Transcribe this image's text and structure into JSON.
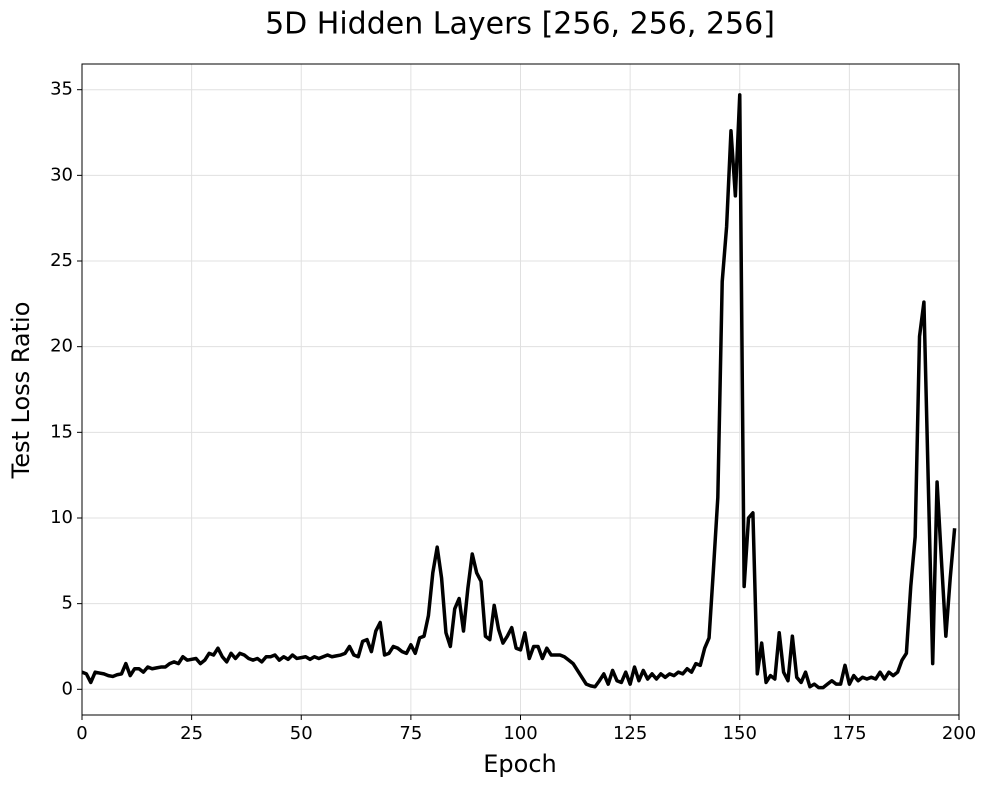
{
  "chart_data": {
    "type": "line",
    "title": "5D Hidden Layers [256, 256, 256]",
    "x_label": "Epoch",
    "y_label": "Test Loss Ratio",
    "color": "#000000",
    "grid": true,
    "xlim": [
      0,
      200
    ],
    "xticks": [
      0,
      25,
      50,
      75,
      100,
      125,
      150,
      175,
      200
    ],
    "ylim": [
      -1.5,
      36.5
    ],
    "yticks": [
      0,
      5,
      10,
      15,
      20,
      25,
      30,
      35
    ],
    "x": [
      0,
      1,
      2,
      3,
      4,
      5,
      6,
      7,
      8,
      9,
      10,
      11,
      12,
      13,
      14,
      15,
      16,
      17,
      18,
      19,
      20,
      21,
      22,
      23,
      24,
      25,
      26,
      27,
      28,
      29,
      30,
      31,
      32,
      33,
      34,
      35,
      36,
      37,
      38,
      39,
      40,
      41,
      42,
      43,
      44,
      45,
      46,
      47,
      48,
      49,
      50,
      51,
      52,
      53,
      54,
      55,
      56,
      57,
      58,
      59,
      60,
      61,
      62,
      63,
      64,
      65,
      66,
      67,
      68,
      69,
      70,
      71,
      72,
      73,
      74,
      75,
      76,
      77,
      78,
      79,
      80,
      81,
      82,
      83,
      84,
      85,
      86,
      87,
      88,
      89,
      90,
      91,
      92,
      93,
      94,
      95,
      96,
      97,
      98,
      99,
      100,
      101,
      102,
      103,
      104,
      105,
      106,
      107,
      108,
      109,
      110,
      111,
      112,
      113,
      114,
      115,
      116,
      117,
      118,
      119,
      120,
      121,
      122,
      123,
      124,
      125,
      126,
      127,
      128,
      129,
      130,
      131,
      132,
      133,
      134,
      135,
      136,
      137,
      138,
      139,
      140,
      141,
      142,
      143,
      144,
      145,
      146,
      147,
      148,
      149,
      150,
      151,
      152,
      153,
      154,
      155,
      156,
      157,
      158,
      159,
      160,
      161,
      162,
      163,
      164,
      165,
      166,
      167,
      168,
      169,
      170,
      171,
      172,
      173,
      174,
      175,
      176,
      177,
      178,
      179,
      180,
      181,
      182,
      183,
      184,
      185,
      186,
      187,
      188,
      189,
      190,
      191,
      192,
      193,
      194,
      195,
      196,
      197,
      198,
      199
    ],
    "values": [
      1.0,
      0.9,
      0.4,
      1.0,
      0.95,
      0.9,
      0.8,
      0.75,
      0.85,
      0.9,
      1.5,
      0.8,
      1.2,
      1.2,
      1.0,
      1.3,
      1.2,
      1.25,
      1.3,
      1.3,
      1.5,
      1.6,
      1.5,
      1.9,
      1.7,
      1.75,
      1.8,
      1.5,
      1.7,
      2.1,
      2.0,
      2.4,
      1.9,
      1.6,
      2.1,
      1.8,
      2.1,
      2.0,
      1.8,
      1.7,
      1.8,
      1.6,
      1.9,
      1.9,
      2.0,
      1.7,
      1.9,
      1.75,
      2.0,
      1.8,
      1.85,
      1.9,
      1.75,
      1.9,
      1.8,
      1.9,
      2.0,
      1.9,
      1.95,
      2.0,
      2.1,
      2.5,
      2.0,
      1.9,
      2.8,
      2.9,
      2.2,
      3.4,
      3.9,
      2.0,
      2.1,
      2.5,
      2.4,
      2.2,
      2.1,
      2.6,
      2.1,
      3.0,
      3.1,
      4.3,
      6.8,
      8.3,
      6.5,
      3.3,
      2.5,
      4.7,
      5.3,
      3.4,
      5.9,
      7.9,
      6.8,
      6.3,
      3.1,
      2.9,
      4.9,
      3.5,
      2.7,
      3.1,
      3.6,
      2.4,
      2.3,
      3.3,
      1.8,
      2.5,
      2.5,
      1.8,
      2.4,
      2.0,
      2.0,
      2.0,
      1.9,
      1.7,
      1.5,
      1.1,
      0.7,
      0.3,
      0.2,
      0.15,
      0.5,
      0.9,
      0.3,
      1.1,
      0.5,
      0.4,
      1.0,
      0.3,
      1.3,
      0.5,
      1.1,
      0.6,
      0.9,
      0.6,
      0.9,
      0.7,
      0.9,
      0.8,
      1.0,
      0.9,
      1.2,
      1.0,
      1.5,
      1.4,
      2.4,
      3.0,
      7.0,
      11.2,
      23.8,
      27.0,
      32.6,
      28.8,
      34.7,
      6.0,
      10.0,
      10.3,
      0.9,
      2.7,
      0.4,
      0.8,
      0.6,
      3.3,
      1.0,
      0.5,
      3.1,
      0.7,
      0.4,
      1.0,
      0.15,
      0.3,
      0.1,
      0.1,
      0.3,
      0.5,
      0.3,
      0.3,
      1.4,
      0.3,
      0.8,
      0.5,
      0.7,
      0.6,
      0.7,
      0.6,
      1.0,
      0.6,
      1.0,
      0.8,
      1.0,
      1.7,
      2.1,
      6.0,
      8.9,
      20.6,
      22.6,
      12.0,
      1.5,
      12.1,
      7.5,
      3.1,
      6.5,
      9.4
    ]
  }
}
